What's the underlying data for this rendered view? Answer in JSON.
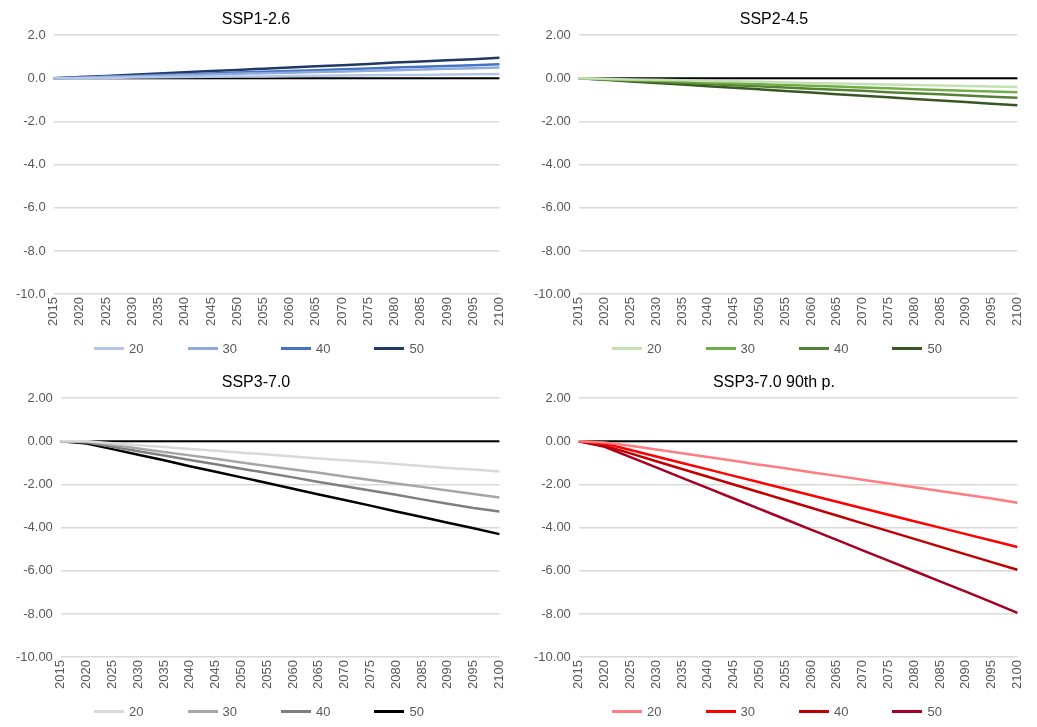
{
  "chart_data": [
    {
      "type": "line",
      "title": "SSP1-2.6",
      "categories": [
        "2015",
        "2020",
        "2025",
        "2030",
        "2035",
        "2040",
        "2045",
        "2050",
        "2055",
        "2060",
        "2065",
        "2070",
        "2075",
        "2080",
        "2085",
        "2090",
        "2095",
        "2100"
      ],
      "ylim": [
        -10,
        2
      ],
      "yticks": [
        {
          "value": -10,
          "label": "-10.0"
        },
        {
          "value": -8,
          "label": "-8.0"
        },
        {
          "value": -6,
          "label": "-6.0"
        },
        {
          "value": -4,
          "label": "-4.0"
        },
        {
          "value": -2,
          "label": "-2.0"
        },
        {
          "value": 0,
          "label": "0.0"
        },
        {
          "value": 2,
          "label": "2.0"
        }
      ],
      "grid": "y",
      "legend": "bottom",
      "marker": "none",
      "line_style": "solid",
      "ref_lines": [
        {
          "axis": "y",
          "value": 0,
          "color": "#000000"
        }
      ],
      "series": [
        {
          "name": "20",
          "color": "#b4c7e7",
          "values": [
            0,
            0.01,
            0.02,
            0.04,
            0.05,
            0.06,
            0.07,
            0.08,
            0.09,
            0.11,
            0.12,
            0.13,
            0.14,
            0.15,
            0.16,
            0.18,
            0.19,
            0.2
          ]
        },
        {
          "name": "30",
          "color": "#8faadc",
          "values": [
            0,
            0.03,
            0.06,
            0.09,
            0.12,
            0.15,
            0.18,
            0.21,
            0.24,
            0.26,
            0.29,
            0.32,
            0.35,
            0.38,
            0.41,
            0.44,
            0.47,
            0.5
          ]
        },
        {
          "name": "40",
          "color": "#4472c4",
          "values": [
            0,
            0.04,
            0.08,
            0.11,
            0.15,
            0.19,
            0.23,
            0.27,
            0.31,
            0.34,
            0.38,
            0.42,
            0.46,
            0.5,
            0.54,
            0.57,
            0.61,
            0.65
          ]
        },
        {
          "name": "50",
          "color": "#203864",
          "values": [
            0,
            0.06,
            0.11,
            0.17,
            0.22,
            0.28,
            0.34,
            0.39,
            0.45,
            0.5,
            0.56,
            0.61,
            0.67,
            0.73,
            0.78,
            0.84,
            0.89,
            0.95
          ]
        }
      ]
    },
    {
      "type": "line",
      "title": "SSP2-4.5",
      "categories": [
        "2015",
        "2020",
        "2025",
        "2030",
        "2035",
        "2040",
        "2045",
        "2050",
        "2055",
        "2060",
        "2065",
        "2070",
        "2075",
        "2080",
        "2085",
        "2090",
        "2095",
        "2100"
      ],
      "ylim": [
        -10,
        2
      ],
      "yticks": [
        {
          "value": -10,
          "label": "-10.00"
        },
        {
          "value": -8,
          "label": "-8.00"
        },
        {
          "value": -6,
          "label": "-6.00"
        },
        {
          "value": -4,
          "label": "-4.00"
        },
        {
          "value": -2,
          "label": "-2.00"
        },
        {
          "value": 0,
          "label": "0.00"
        },
        {
          "value": 2,
          "label": "2.00"
        }
      ],
      "grid": "y",
      "legend": "bottom",
      "marker": "none",
      "line_style": "solid",
      "ref_lines": [
        {
          "axis": "y",
          "value": 0,
          "color": "#000000"
        }
      ],
      "series": [
        {
          "name": "20",
          "color": "#c5e0b4",
          "values": [
            0,
            -0.02,
            -0.05,
            -0.07,
            -0.09,
            -0.12,
            -0.14,
            -0.16,
            -0.19,
            -0.21,
            -0.24,
            -0.26,
            -0.28,
            -0.31,
            -0.33,
            -0.35,
            -0.38,
            -0.4
          ]
        },
        {
          "name": "30",
          "color": "#70ad47",
          "values": [
            0,
            -0.04,
            -0.08,
            -0.11,
            -0.15,
            -0.19,
            -0.23,
            -0.27,
            -0.31,
            -0.34,
            -0.38,
            -0.42,
            -0.46,
            -0.5,
            -0.54,
            -0.57,
            -0.61,
            -0.65
          ]
        },
        {
          "name": "40",
          "color": "#548235",
          "values": [
            0,
            -0.05,
            -0.11,
            -0.16,
            -0.21,
            -0.26,
            -0.32,
            -0.37,
            -0.42,
            -0.48,
            -0.53,
            -0.58,
            -0.64,
            -0.69,
            -0.74,
            -0.79,
            -0.85,
            -0.9
          ]
        },
        {
          "name": "50",
          "color": "#385723",
          "values": [
            0,
            -0.07,
            -0.15,
            -0.22,
            -0.29,
            -0.37,
            -0.44,
            -0.51,
            -0.59,
            -0.66,
            -0.74,
            -0.81,
            -0.88,
            -0.96,
            -1.03,
            -1.1,
            -1.18,
            -1.25
          ]
        }
      ]
    },
    {
      "type": "line",
      "title": "SSP3-7.0",
      "categories": [
        "2015",
        "2020",
        "2025",
        "2030",
        "2035",
        "2040",
        "2045",
        "2050",
        "2055",
        "2060",
        "2065",
        "2070",
        "2075",
        "2080",
        "2085",
        "2090",
        "2095",
        "2100"
      ],
      "ylim": [
        -10,
        2
      ],
      "yticks": [
        {
          "value": -10,
          "label": "-10.00"
        },
        {
          "value": -8,
          "label": "-8.00"
        },
        {
          "value": -6,
          "label": "-6.00"
        },
        {
          "value": -4,
          "label": "-4.00"
        },
        {
          "value": -2,
          "label": "-2.00"
        },
        {
          "value": 0,
          "label": "0.00"
        },
        {
          "value": 2,
          "label": "2.00"
        }
      ],
      "grid": "y",
      "legend": "bottom",
      "marker": "none",
      "line_style": "solid",
      "ref_lines": [
        {
          "axis": "y",
          "value": 0,
          "color": "#000000"
        }
      ],
      "series": [
        {
          "name": "20",
          "color": "#d9d9d9",
          "values": [
            0,
            0,
            -0.09,
            -0.18,
            -0.26,
            -0.35,
            -0.44,
            -0.53,
            -0.61,
            -0.7,
            -0.79,
            -0.88,
            -0.96,
            -1.05,
            -1.14,
            -1.23,
            -1.31,
            -1.4
          ]
        },
        {
          "name": "30",
          "color": "#a6a6a6",
          "values": [
            0,
            0,
            -0.16,
            -0.33,
            -0.49,
            -0.65,
            -0.81,
            -0.98,
            -1.14,
            -1.3,
            -1.46,
            -1.63,
            -1.79,
            -1.95,
            -2.11,
            -2.28,
            -2.44,
            -2.6
          ]
        },
        {
          "name": "40",
          "color": "#7f7f7f",
          "values": [
            0,
            -0.05,
            -0.25,
            -0.46,
            -0.66,
            -0.86,
            -1.06,
            -1.27,
            -1.47,
            -1.67,
            -1.88,
            -2.08,
            -2.28,
            -2.48,
            -2.69,
            -2.89,
            -3.09,
            -3.25
          ]
        },
        {
          "name": "50",
          "color": "#000000",
          "values": [
            0,
            -0.1,
            -0.36,
            -0.62,
            -0.88,
            -1.15,
            -1.41,
            -1.67,
            -1.93,
            -2.2,
            -2.46,
            -2.72,
            -2.98,
            -3.25,
            -3.51,
            -3.77,
            -4.03,
            -4.3
          ]
        }
      ]
    },
    {
      "type": "line",
      "title": "SSP3-7.0 90th p.",
      "categories": [
        "2015",
        "2020",
        "2025",
        "2030",
        "2035",
        "2040",
        "2045",
        "2050",
        "2055",
        "2060",
        "2065",
        "2070",
        "2075",
        "2080",
        "2085",
        "2090",
        "2095",
        "2100"
      ],
      "ylim": [
        -10,
        2
      ],
      "yticks": [
        {
          "value": -10,
          "label": "-10.00"
        },
        {
          "value": -8,
          "label": "-8.00"
        },
        {
          "value": -6,
          "label": "-6.00"
        },
        {
          "value": -4,
          "label": "-4.00"
        },
        {
          "value": -2,
          "label": "-2.00"
        },
        {
          "value": 0,
          "label": "0.00"
        },
        {
          "value": 2,
          "label": "2.00"
        }
      ],
      "grid": "y",
      "legend": "bottom",
      "marker": "none",
      "line_style": "solid",
      "ref_lines": [
        {
          "axis": "y",
          "value": 0,
          "color": "#000000"
        }
      ],
      "series": [
        {
          "name": "20",
          "color": "#ff7c80",
          "values": [
            0,
            -0.05,
            -0.2,
            -0.38,
            -0.55,
            -0.73,
            -0.9,
            -1.08,
            -1.25,
            -1.43,
            -1.6,
            -1.78,
            -1.95,
            -2.13,
            -2.3,
            -2.48,
            -2.65,
            -2.85
          ]
        },
        {
          "name": "30",
          "color": "#ff0000",
          "values": [
            0,
            -0.1,
            -0.4,
            -0.7,
            -1,
            -1.3,
            -1.6,
            -1.9,
            -2.2,
            -2.5,
            -2.8,
            -3.1,
            -3.4,
            -3.7,
            -4,
            -4.3,
            -4.6,
            -4.9
          ]
        },
        {
          "name": "40",
          "color": "#c00000",
          "values": [
            0,
            -0.2,
            -0.56,
            -0.92,
            -1.28,
            -1.64,
            -2,
            -2.36,
            -2.72,
            -3.08,
            -3.44,
            -3.8,
            -4.16,
            -4.52,
            -4.88,
            -5.24,
            -5.6,
            -5.95
          ]
        },
        {
          "name": "50",
          "color": "#a50021",
          "values": [
            0,
            -0.25,
            -0.73,
            -1.21,
            -1.69,
            -2.17,
            -2.65,
            -3.13,
            -3.61,
            -4.09,
            -4.57,
            -5.05,
            -5.53,
            -6.01,
            -6.49,
            -6.97,
            -7.45,
            -7.95
          ]
        }
      ]
    }
  ]
}
